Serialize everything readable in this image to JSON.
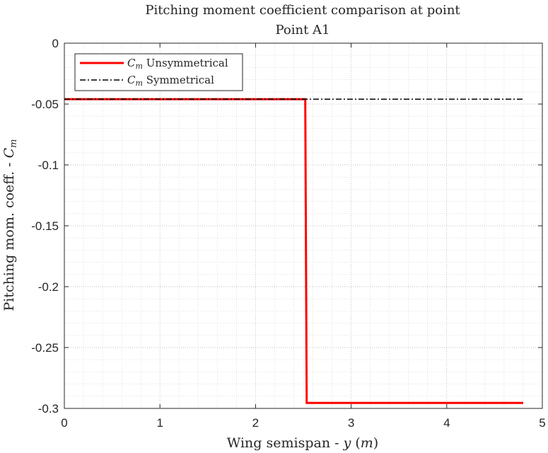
{
  "chart_data": {
    "type": "line",
    "title": [
      "Pitching moment coefficient comparison at point",
      "Point A1"
    ],
    "xlabel": {
      "prefix": "Wing semispan - ",
      "symbol": "y",
      "unit": "m"
    },
    "ylabel": {
      "prefix": "Pitching mom. coeff. - ",
      "symbol": "C",
      "subscript": "m"
    },
    "xlim": [
      0,
      5
    ],
    "ylim": [
      -0.3,
      0
    ],
    "xticks": [
      0,
      1,
      2,
      3,
      4,
      5
    ],
    "xtick_labels": [
      "0",
      "1",
      "2",
      "3",
      "4",
      "5"
    ],
    "yticks": [
      0,
      -0.05,
      -0.1,
      -0.15,
      -0.2,
      -0.25,
      -0.3
    ],
    "ytick_labels": [
      "0",
      "-0.05",
      "-0.1",
      "-0.15",
      "-0.2",
      "-0.25",
      "-0.3"
    ],
    "grid": true,
    "minor_grid": true,
    "legend_position": "top-left",
    "series": [
      {
        "name": "Unsymmetrical",
        "legend_symbol": "C",
        "legend_subscript": "m",
        "color": "#ff0000",
        "line_style": "solid",
        "x": [
          0,
          2.52,
          2.52,
          2.535,
          4.8
        ],
        "y": [
          -0.046,
          -0.046,
          -0.046,
          -0.2955,
          -0.2955
        ]
      },
      {
        "name": "Symmetrical",
        "legend_symbol": "C",
        "legend_subscript": "m",
        "color": "#000000",
        "line_style": "dashdot",
        "x": [
          0,
          4.8
        ],
        "y": [
          -0.046,
          -0.046
        ]
      }
    ]
  }
}
